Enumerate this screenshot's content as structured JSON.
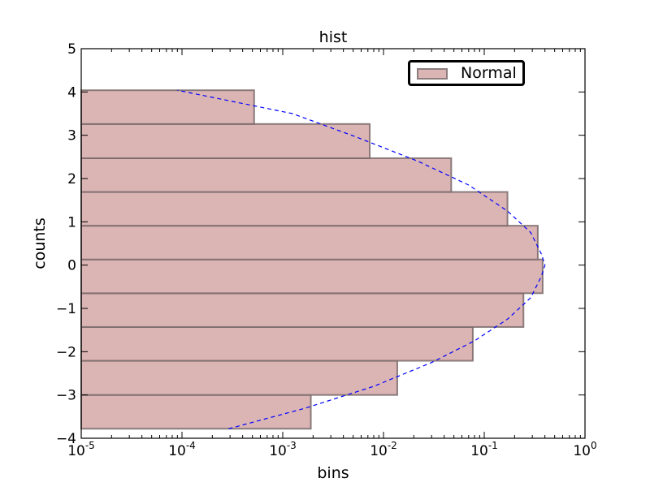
{
  "chart_data": {
    "type": "bar",
    "orientation": "horizontal",
    "title": "hist",
    "xlabel": "bins",
    "ylabel": "counts",
    "xscale": "log",
    "xlim": [
      1e-05,
      1
    ],
    "ylim": [
      -4,
      5
    ],
    "xticks": [
      {
        "value": 1e-05,
        "base": "10",
        "exp": "-5"
      },
      {
        "value": 0.0001,
        "base": "10",
        "exp": "-4"
      },
      {
        "value": 0.001,
        "base": "10",
        "exp": "-3"
      },
      {
        "value": 0.01,
        "base": "10",
        "exp": "-2"
      },
      {
        "value": 0.1,
        "base": "10",
        "exp": "-1"
      },
      {
        "value": 1,
        "base": "10",
        "exp": "0"
      }
    ],
    "yticks": [
      {
        "value": -4,
        "label": "−4"
      },
      {
        "value": -3,
        "label": "−3"
      },
      {
        "value": -2,
        "label": "−2"
      },
      {
        "value": -1,
        "label": "−1"
      },
      {
        "value": 0,
        "label": "0"
      },
      {
        "value": 1,
        "label": "1"
      },
      {
        "value": 2,
        "label": "2"
      },
      {
        "value": 3,
        "label": "3"
      },
      {
        "value": 4,
        "label": "4"
      },
      {
        "value": 5,
        "label": "5"
      }
    ],
    "bins": [
      {
        "low": -3.78,
        "high": -3.0,
        "count": 0.0019
      },
      {
        "low": -3.0,
        "high": -2.21,
        "count": 0.0137
      },
      {
        "low": -2.21,
        "high": -1.43,
        "count": 0.077
      },
      {
        "low": -1.43,
        "high": -0.65,
        "count": 0.245
      },
      {
        "low": -0.65,
        "high": 0.13,
        "count": 0.38
      },
      {
        "low": 0.13,
        "high": 0.91,
        "count": 0.34
      },
      {
        "low": 0.91,
        "high": 1.69,
        "count": 0.17
      },
      {
        "low": 1.69,
        "high": 2.47,
        "count": 0.047
      },
      {
        "low": 2.47,
        "high": 3.26,
        "count": 0.0073
      },
      {
        "low": 3.26,
        "high": 4.04,
        "count": 0.00052
      }
    ],
    "curve": {
      "style": "dashed",
      "color": "#0000ff",
      "points": [
        [
          0.00029,
          -3.78
        ],
        [
          0.0017,
          -3.3
        ],
        [
          0.008,
          -2.8
        ],
        [
          0.03,
          -2.25
        ],
        [
          0.08,
          -1.75
        ],
        [
          0.17,
          -1.25
        ],
        [
          0.29,
          -0.75
        ],
        [
          0.37,
          -0.25
        ],
        [
          0.4,
          0.0
        ],
        [
          0.37,
          0.25
        ],
        [
          0.29,
          0.75
        ],
        [
          0.17,
          1.25
        ],
        [
          0.07,
          1.85
        ],
        [
          0.022,
          2.4
        ],
        [
          0.0055,
          2.95
        ],
        [
          0.00125,
          3.5
        ],
        [
          9e-05,
          4.04
        ]
      ]
    },
    "legend": {
      "label": "Normal",
      "location": "top-right"
    },
    "colors": {
      "bar_fill": "#dbb4b4",
      "bar_edge": "#7a6a6a",
      "curve": "#0000ff"
    },
    "grid": false
  }
}
